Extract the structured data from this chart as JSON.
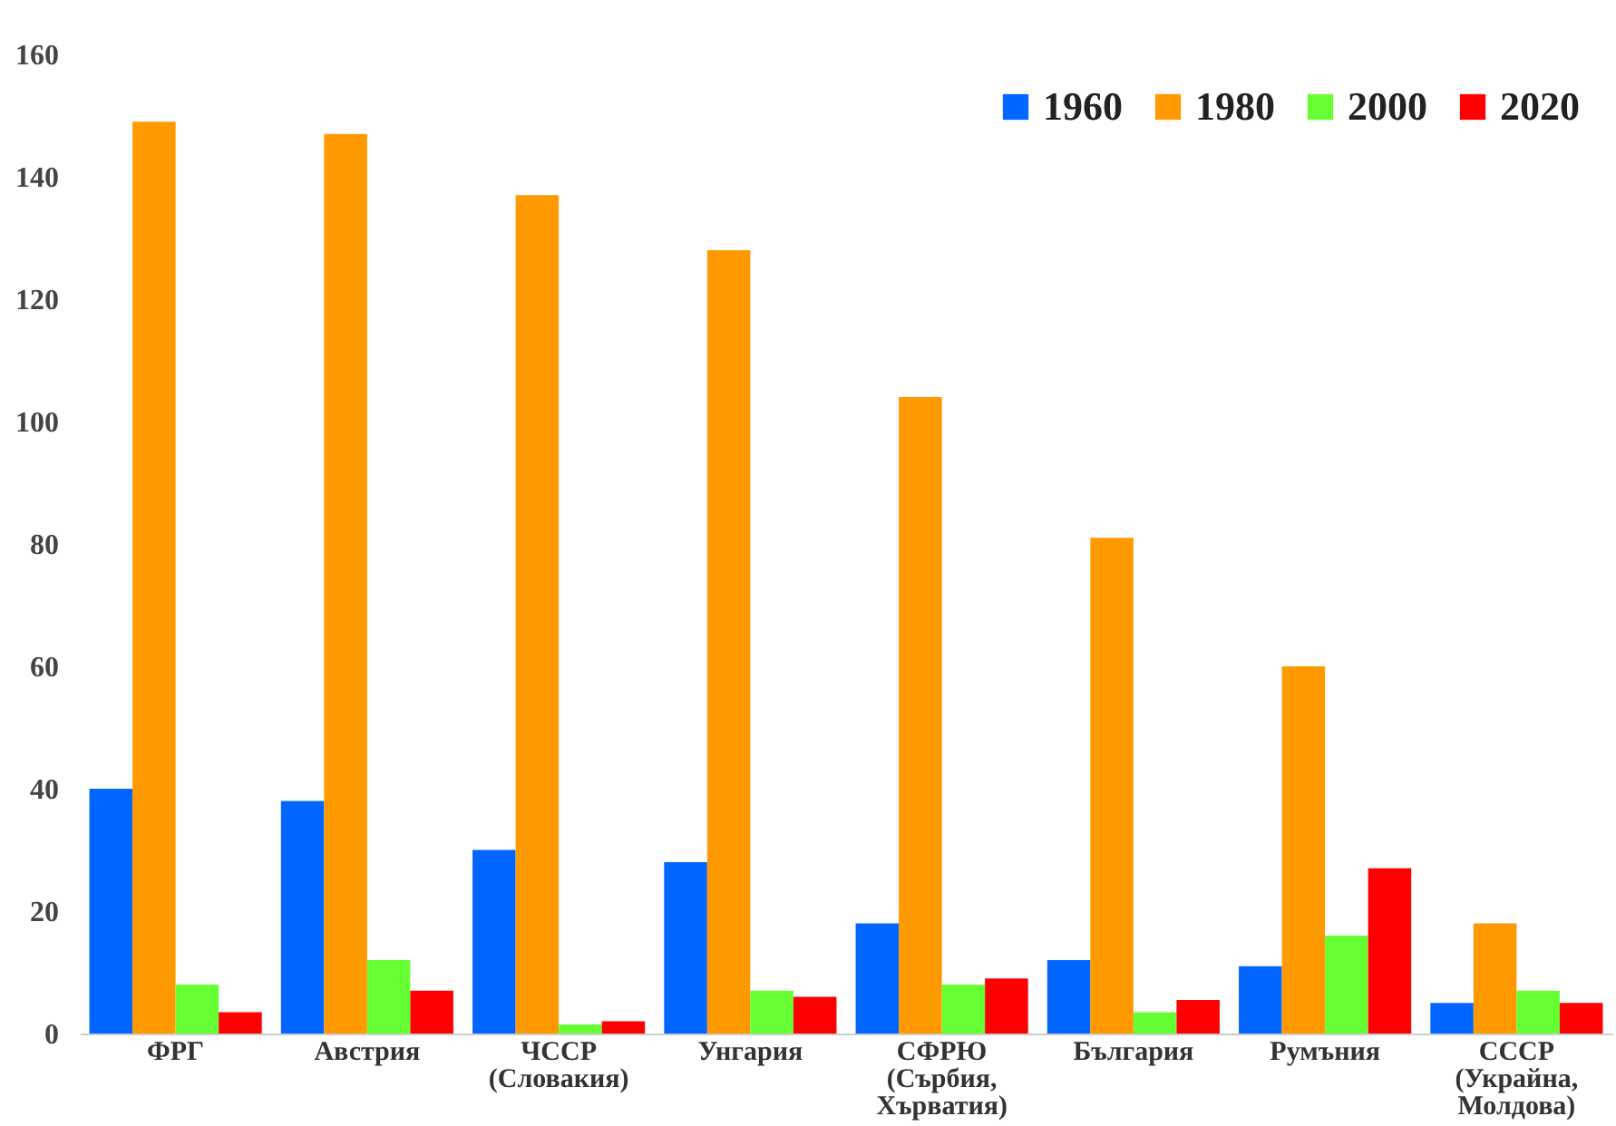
{
  "chart_data": {
    "type": "bar",
    "categories": [
      "ФРГ",
      "Австрия",
      "ЧССР (Словакия)",
      "Унгария",
      "СФРЮ (Сърбия, Хърватия)",
      "България",
      "Румъния",
      "СССР (Украйна, Молдова)"
    ],
    "series": [
      {
        "name": "1960",
        "color": "#0066ff",
        "values": [
          40,
          38,
          30,
          28,
          18,
          12,
          11,
          5
        ]
      },
      {
        "name": "1980",
        "color": "#ff9900",
        "values": [
          149,
          147,
          137,
          128,
          104,
          81,
          60,
          18
        ]
      },
      {
        "name": "2000",
        "color": "#66ff33",
        "values": [
          8,
          12,
          1.5,
          7,
          8,
          3.5,
          16,
          7
        ]
      },
      {
        "name": "2020",
        "color": "#ff0000",
        "values": [
          3.5,
          7,
          2,
          6,
          9,
          5.5,
          27,
          5
        ]
      }
    ],
    "ylim": [
      0,
      160
    ],
    "yticks": [
      0,
      20,
      40,
      60,
      80,
      100,
      120,
      140,
      160
    ],
    "grid": false,
    "legend": "top right"
  }
}
